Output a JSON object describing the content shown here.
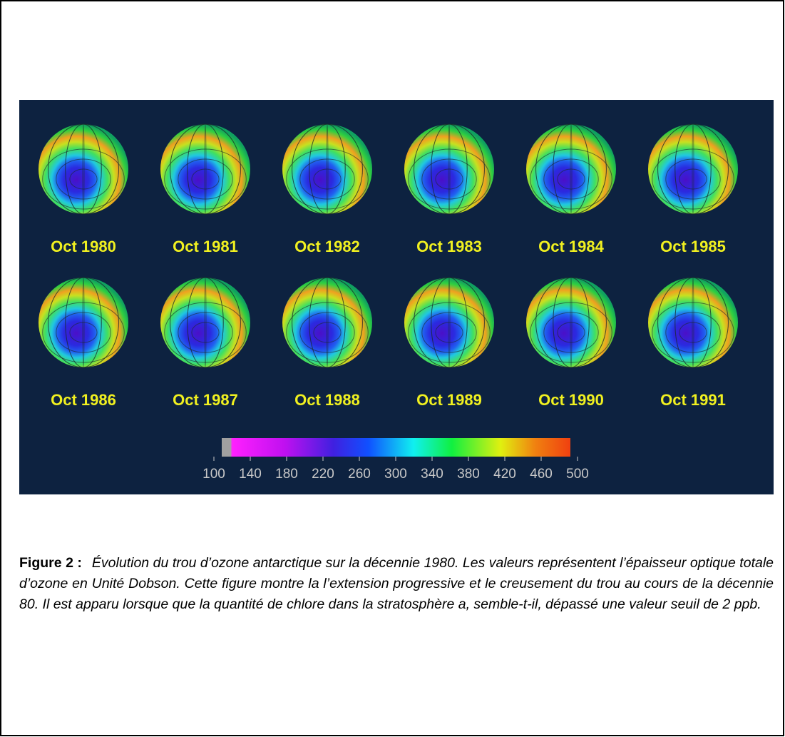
{
  "figure": {
    "panels": [
      "Oct 1980",
      "Oct 1981",
      "Oct 1982",
      "Oct 1983",
      "Oct 1984",
      "Oct 1985",
      "Oct 1986",
      "Oct 1987",
      "Oct 1988",
      "Oct 1989",
      "Oct 1990",
      "Oct 1991"
    ],
    "colorbar_ticks": [
      "100",
      "140",
      "180",
      "220",
      "260",
      "300",
      "340",
      "380",
      "420",
      "460",
      "500"
    ]
  },
  "caption": {
    "label": "Figure 2 :",
    "text": "Évolution du trou d’ozone antarctique sur la décennie 1980. Les valeurs représentent l’épaisseur optique totale d’ozone en Unité Dobson. Cette figure montre la l’extension progressive et le creusement du trou  au cours de la décennie 80. Il est apparu lorsque que la quantité de chlore dans la stratosphère a, semble-t-il,  dépassé une valeur seuil de 2 ppb."
  }
}
